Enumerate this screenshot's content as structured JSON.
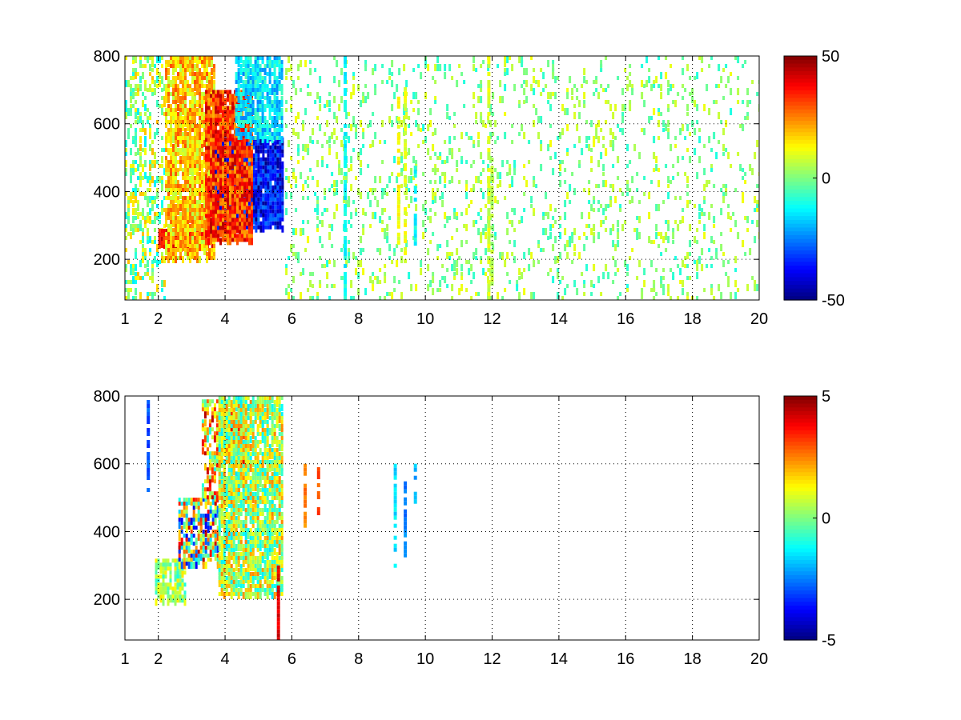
{
  "chart_data": [
    {
      "type": "heatmap",
      "panel": "top",
      "x_ticks": [
        1,
        2,
        4,
        6,
        8,
        10,
        12,
        14,
        16,
        18,
        20
      ],
      "y_ticks": [
        200,
        400,
        600,
        800
      ],
      "xlim": [
        1,
        20
      ],
      "ylim": [
        80,
        800
      ],
      "grid": true,
      "colormap": "jet",
      "colorbar": {
        "min": -50,
        "max": 50,
        "tick_labels": [
          "50",
          "0",
          "-50"
        ]
      },
      "regions": [
        {
          "x": [
            1,
            2.2
          ],
          "y": [
            80,
            800
          ],
          "value_range": [
            -15,
            20
          ],
          "density": 0.35,
          "pattern": "sparse vertical streaks"
        },
        {
          "x": [
            2,
            3.6
          ],
          "y": [
            240,
            290
          ],
          "value_range": [
            30,
            45
          ],
          "density": 0.95,
          "pattern": "dense red band"
        },
        {
          "x": [
            2.2,
            3.7
          ],
          "y": [
            200,
            800
          ],
          "value_range": [
            5,
            30
          ],
          "density": 0.85,
          "pattern": "yellow to orange"
        },
        {
          "x": [
            3.6,
            5.7
          ],
          "y": [
            300,
            560
          ],
          "value_range": [
            -50,
            -25
          ],
          "density": 0.95,
          "pattern": "blue arc"
        },
        {
          "x": [
            3.4,
            4.8
          ],
          "y": [
            260,
            700
          ],
          "value_range": [
            20,
            45
          ],
          "density": 0.9,
          "pattern": "red/orange"
        },
        {
          "x": [
            4.3,
            5.7
          ],
          "y": [
            560,
            800
          ],
          "value_range": [
            -25,
            -5
          ],
          "density": 0.8,
          "pattern": "cyan"
        },
        {
          "x": [
            5.8,
            20
          ],
          "y": [
            80,
            800
          ],
          "value_range": [
            -10,
            12
          ],
          "density": 0.12,
          "pattern": "sparse green/cyan/yellow speckles"
        }
      ],
      "streaks": [
        {
          "x": 7.6,
          "y": [
            80,
            800
          ],
          "value": -12
        },
        {
          "x": 9.2,
          "y": [
            250,
            680
          ],
          "value": 12
        },
        {
          "x": 9.4,
          "y": [
            200,
            720
          ],
          "value": 10
        },
        {
          "x": 9.7,
          "y": [
            250,
            500
          ],
          "value": -12
        },
        {
          "x": 11.9,
          "y": [
            80,
            800
          ],
          "value": 8
        },
        {
          "x": 12.0,
          "y": [
            80,
            500
          ],
          "value": 5
        }
      ]
    },
    {
      "type": "heatmap",
      "panel": "bottom",
      "x_ticks": [
        1,
        2,
        4,
        6,
        8,
        10,
        12,
        14,
        16,
        18,
        20
      ],
      "y_ticks": [
        200,
        400,
        600,
        800
      ],
      "xlim": [
        1,
        20
      ],
      "ylim": [
        80,
        800
      ],
      "grid": true,
      "colormap": "jet",
      "colorbar": {
        "min": -5,
        "max": 5,
        "tick_labels": [
          "5",
          "0",
          "-5"
        ]
      },
      "regions": [
        {
          "x": [
            1.9,
            2.8
          ],
          "y": [
            200,
            320
          ],
          "value_range": [
            -1,
            1.5
          ],
          "density": 0.8,
          "pattern": "green/cyan"
        },
        {
          "x": [
            2.6,
            3.8
          ],
          "y": [
            300,
            500
          ],
          "value_range": [
            -4,
            4.5
          ],
          "density": 0.7,
          "pattern": "mixed red/blue"
        },
        {
          "x": [
            3.3,
            4.6
          ],
          "y": [
            500,
            790
          ],
          "value_range": [
            -1,
            4.5
          ],
          "density": 0.55,
          "pattern": "mixed orange/red"
        },
        {
          "x": [
            3.8,
            5.7
          ],
          "y": [
            220,
            800
          ],
          "value_range": [
            -1.5,
            2.5
          ],
          "density": 0.85,
          "pattern": "green/yellow"
        }
      ],
      "streaks": [
        {
          "x": 1.7,
          "y": [
            520,
            800
          ],
          "value": -3
        },
        {
          "x": 5.6,
          "y": [
            80,
            300
          ],
          "value": 4
        },
        {
          "x": 6.4,
          "y": [
            420,
            600
          ],
          "value": 2.5
        },
        {
          "x": 6.8,
          "y": [
            460,
            590
          ],
          "value": 3
        },
        {
          "x": 9.1,
          "y": [
            300,
            600
          ],
          "value": -1.5
        },
        {
          "x": 9.4,
          "y": [
            330,
            560
          ],
          "value": -2.5
        },
        {
          "x": 9.7,
          "y": [
            480,
            600
          ],
          "value": -2
        }
      ]
    }
  ]
}
